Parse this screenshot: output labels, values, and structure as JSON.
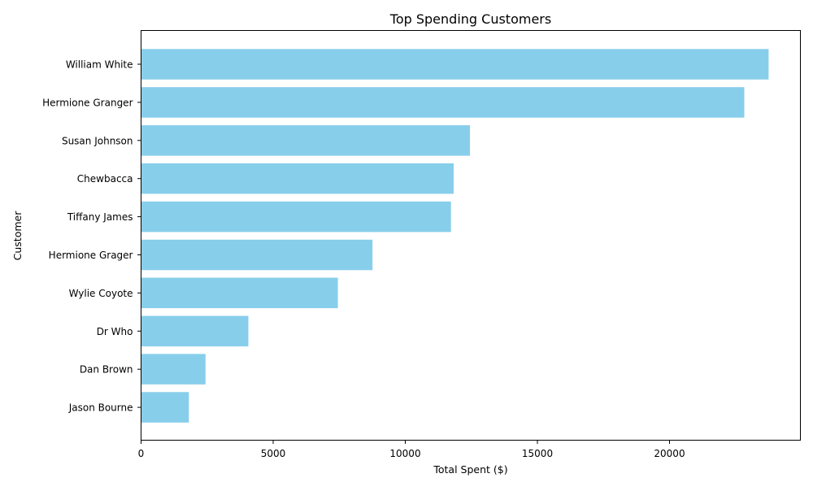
{
  "chart_data": {
    "type": "bar",
    "orientation": "horizontal",
    "title": "Top Spending Customers",
    "xlabel": "Total Spent ($)",
    "ylabel": "Customer",
    "categories": [
      "William White",
      "Hermione Granger",
      "Susan Johnson",
      "Chewbacca",
      "Tiffany James",
      "Hermione Grager",
      "Wylie Coyote",
      "Dr Who",
      "Dan Brown",
      "Jason Bourne"
    ],
    "values": [
      23750,
      22830,
      12450,
      11830,
      11730,
      8760,
      7450,
      4060,
      2440,
      1810
    ],
    "xlim": [
      0,
      25000
    ],
    "xticks": [
      "0",
      "5000",
      "10000",
      "15000",
      "20000"
    ],
    "bar_color": "#87CEEB",
    "grid": false,
    "legend": "none"
  }
}
